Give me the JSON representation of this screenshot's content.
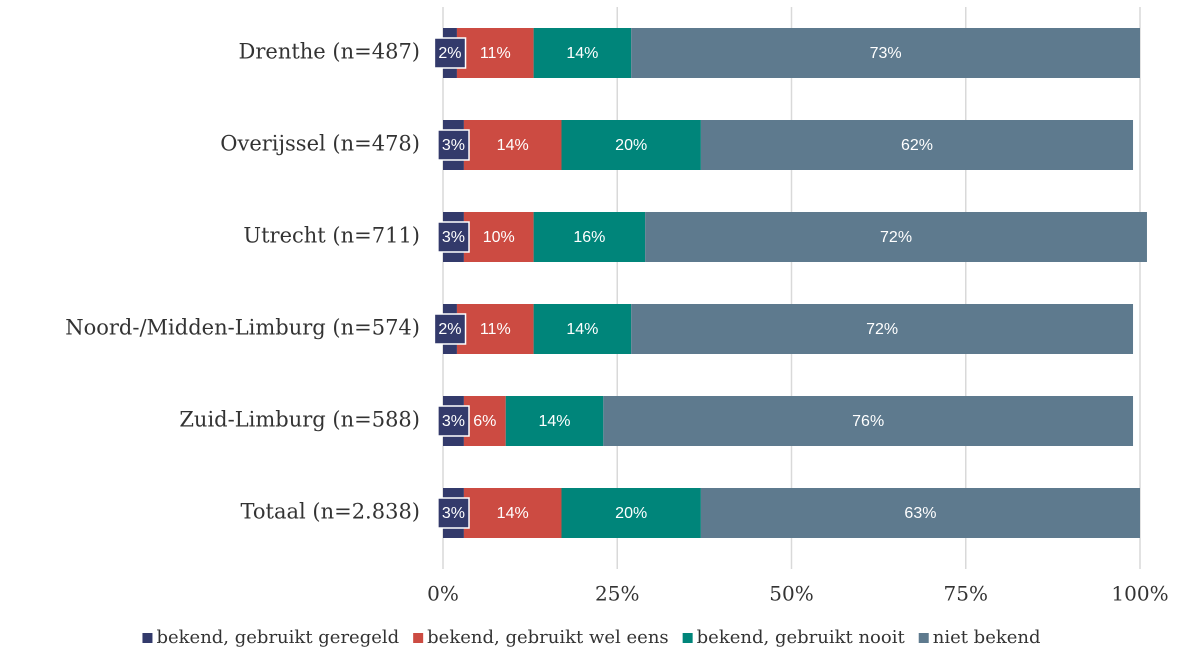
{
  "chart_data": {
    "type": "stacked_bar_horizontal",
    "categories": [
      "Drenthe (n=487)",
      "Overijssel (n=478)",
      "Utrecht (n=711)",
      "Noord-/Midden-Limburg (n=574)",
      "Zuid-Limburg (n=588)",
      "Totaal (n=2.838)"
    ],
    "series": [
      {
        "name": "bekend, gebruikt geregeld",
        "color": "#333a6b",
        "values": [
          2,
          3,
          3,
          2,
          3,
          3
        ],
        "value_labels": [
          "2%",
          "3%",
          "3%",
          "2%",
          "3%",
          "3%"
        ]
      },
      {
        "name": "bekend, gebruikt wel eens",
        "color": "#cc4b42",
        "values": [
          11,
          14,
          10,
          11,
          6,
          14
        ],
        "value_labels": [
          "11%",
          "14%",
          "10%",
          "11%",
          "6%",
          "14%"
        ]
      },
      {
        "name": "bekend, gebruikt nooit",
        "color": "#00857a",
        "values": [
          14,
          20,
          16,
          14,
          14,
          20
        ],
        "value_labels": [
          "14%",
          "20%",
          "16%",
          "14%",
          "14%",
          "20%"
        ]
      },
      {
        "name": "niet bekend",
        "color": "#5e7a8e",
        "values": [
          73,
          62,
          72,
          72,
          76,
          63
        ],
        "value_labels": [
          "73%",
          "62%",
          "72%",
          "72%",
          "76%",
          "63%"
        ]
      }
    ],
    "xlim": [
      0,
      100
    ],
    "xticks": [
      {
        "value": 0,
        "label": "0%"
      },
      {
        "value": 25,
        "label": "25%"
      },
      {
        "value": 50,
        "label": "50%"
      },
      {
        "value": 75,
        "label": "75%"
      },
      {
        "value": 100,
        "label": "100%"
      }
    ],
    "grid": true,
    "legend": "bottom"
  }
}
